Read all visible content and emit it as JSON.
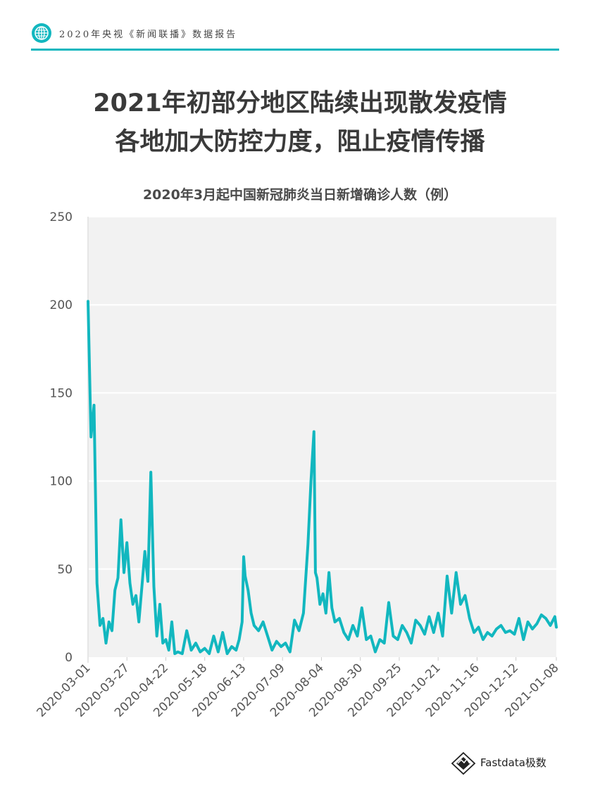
{
  "header": {
    "text": "2020年央视《新闻联播》数据报告",
    "icon": "globe-icon",
    "accent_color": "#12b7bf"
  },
  "headline": {
    "line1": "2021年初部分地区陆续出现散发疫情",
    "line2": "各地加大防控力度，阻止疫情传播"
  },
  "footer": {
    "brand": "Fastdata极数",
    "icon": "diamond-logo-icon"
  },
  "chart_data": {
    "type": "line",
    "title": "2020年3月起中国新冠肺炎当日新增确诊人数（例）",
    "xlabel": "",
    "ylabel": "",
    "ylim": [
      0,
      250
    ],
    "yticks": [
      0,
      50,
      100,
      150,
      200,
      250
    ],
    "xticks": [
      "2020-03-01",
      "2020-03-27",
      "2020-04-22",
      "2020-05-18",
      "2020-06-13",
      "2020-07-09",
      "2020-08-04",
      "2020-08-30",
      "2020-09-25",
      "2020-10-21",
      "2020-11-16",
      "2020-12-12",
      "2021-01-08"
    ],
    "line_color": "#12b7bf",
    "plot_background": "#f2f2f2",
    "grid": true,
    "series": [
      {
        "name": "",
        "x": [
          "2020-03-01",
          "2020-03-03",
          "2020-03-05",
          "2020-03-07",
          "2020-03-09",
          "2020-03-11",
          "2020-03-13",
          "2020-03-15",
          "2020-03-17",
          "2020-03-19",
          "2020-03-21",
          "2020-03-23",
          "2020-03-25",
          "2020-03-27",
          "2020-03-29",
          "2020-03-31",
          "2020-04-02",
          "2020-04-04",
          "2020-04-06",
          "2020-04-08",
          "2020-04-10",
          "2020-04-12",
          "2020-04-14",
          "2020-04-16",
          "2020-04-18",
          "2020-04-20",
          "2020-04-22",
          "2020-04-24",
          "2020-04-26",
          "2020-04-28",
          "2020-04-30",
          "2020-05-03",
          "2020-05-06",
          "2020-05-09",
          "2020-05-12",
          "2020-05-15",
          "2020-05-18",
          "2020-05-21",
          "2020-05-24",
          "2020-05-27",
          "2020-05-30",
          "2020-06-02",
          "2020-06-05",
          "2020-06-08",
          "2020-06-10",
          "2020-06-12",
          "2020-06-13",
          "2020-06-14",
          "2020-06-16",
          "2020-06-18",
          "2020-06-20",
          "2020-06-23",
          "2020-06-26",
          "2020-06-29",
          "2020-07-02",
          "2020-07-05",
          "2020-07-08",
          "2020-07-11",
          "2020-07-14",
          "2020-07-17",
          "2020-07-20",
          "2020-07-23",
          "2020-07-26",
          "2020-07-28",
          "2020-07-30",
          "2020-07-31",
          "2020-08-01",
          "2020-08-03",
          "2020-08-05",
          "2020-08-07",
          "2020-08-09",
          "2020-08-11",
          "2020-08-13",
          "2020-08-16",
          "2020-08-19",
          "2020-08-22",
          "2020-08-25",
          "2020-08-28",
          "2020-08-31",
          "2020-09-03",
          "2020-09-06",
          "2020-09-09",
          "2020-09-12",
          "2020-09-15",
          "2020-09-18",
          "2020-09-21",
          "2020-09-24",
          "2020-09-27",
          "2020-09-30",
          "2020-10-03",
          "2020-10-06",
          "2020-10-09",
          "2020-10-12",
          "2020-10-15",
          "2020-10-18",
          "2020-10-21",
          "2020-10-24",
          "2020-10-27",
          "2020-10-30",
          "2020-11-02",
          "2020-11-05",
          "2020-11-08",
          "2020-11-11",
          "2020-11-14",
          "2020-11-17",
          "2020-11-20",
          "2020-11-23",
          "2020-11-26",
          "2020-11-29",
          "2020-12-02",
          "2020-12-05",
          "2020-12-08",
          "2020-12-11",
          "2020-12-14",
          "2020-12-17",
          "2020-12-20",
          "2020-12-23",
          "2020-12-26",
          "2020-12-29",
          "2021-01-01",
          "2021-01-04",
          "2021-01-07",
          "2021-01-10"
        ],
        "values": [
          202,
          125,
          143,
          42,
          18,
          22,
          8,
          20,
          15,
          38,
          45,
          78,
          48,
          65,
          42,
          30,
          35,
          20,
          40,
          60,
          43,
          105,
          40,
          12,
          30,
          8,
          10,
          4,
          20,
          2,
          3,
          2,
          15,
          4,
          8,
          3,
          5,
          2,
          12,
          3,
          14,
          2,
          6,
          4,
          10,
          20,
          57,
          46,
          38,
          25,
          18,
          15,
          20,
          12,
          4,
          9,
          6,
          8,
          3,
          21,
          15,
          25,
          64,
          100,
          128,
          48,
          45,
          30,
          36,
          25,
          48,
          28,
          20,
          22,
          14,
          10,
          18,
          12,
          28,
          10,
          12,
          3,
          10,
          8,
          31,
          12,
          10,
          18,
          14,
          8,
          21,
          18,
          13,
          23,
          14,
          25,
          12,
          46,
          25,
          48,
          30,
          35,
          22,
          14,
          17,
          10,
          14,
          12,
          16,
          18,
          14,
          15,
          13,
          22,
          10,
          20,
          16,
          19,
          24,
          22,
          18,
          23,
          17
        ]
      }
    ]
  }
}
